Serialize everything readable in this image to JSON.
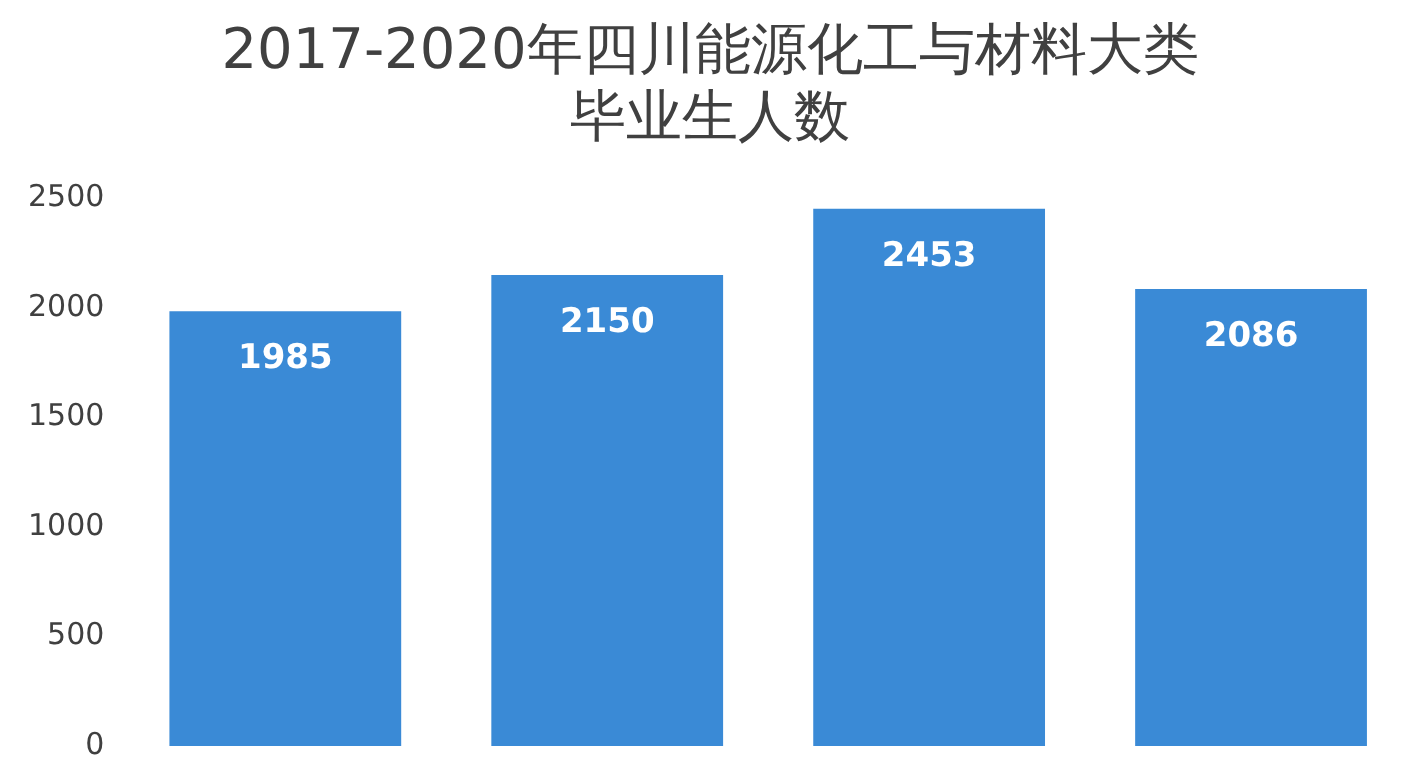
{
  "chart_data": {
    "type": "bar",
    "title": "2017-2020年四川能源化工与材料大类毕业生人数",
    "categories": [
      null,
      null,
      null,
      null
    ],
    "values": [
      1985,
      2150,
      2453,
      2086
    ],
    "color": "#3a8ad6",
    "ylim": [
      0,
      2500
    ],
    "yticks": [
      0,
      500,
      1000,
      1500,
      2000,
      2500
    ],
    "grid": false,
    "legend": false,
    "data_labels": true
  }
}
